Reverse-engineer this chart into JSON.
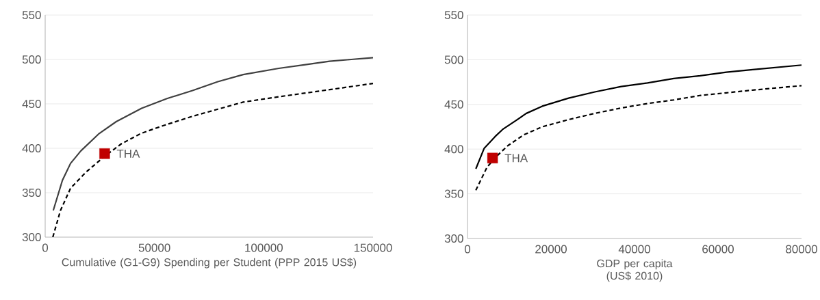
{
  "chart_data": [
    {
      "type": "line",
      "xlabel": "Cumulative  (G1-G9) Spending per Student (PPP 2015 US$)",
      "xlim": [
        0,
        150000
      ],
      "ylim": [
        300,
        550
      ],
      "xticks": [
        0,
        50000,
        100000,
        150000
      ],
      "yticks": [
        300,
        350,
        400,
        450,
        500,
        550
      ],
      "grid": "y",
      "series": [
        {
          "color": "#404040",
          "line_style": "solid",
          "x": [
            3700,
            7900,
            11600,
            16300,
            24400,
            32500,
            44100,
            55700,
            67400,
            79000,
            90600,
            106900,
            118500,
            130100,
            140000,
            150000
          ],
          "values": [
            330,
            364,
            383,
            397,
            416,
            430,
            445,
            456,
            465,
            475,
            483,
            490,
            494,
            498,
            500,
            502
          ]
        },
        {
          "color": "#000000",
          "line_style": "dashed",
          "x": [
            3500,
            7000,
            11600,
            18600,
            26700,
            34800,
            44100,
            54600,
            67400,
            79000,
            90600,
            106900,
            118500,
            130100,
            150000
          ],
          "values": [
            300,
            330,
            355,
            373,
            390,
            405,
            417,
            426,
            436,
            444,
            452,
            458,
            462,
            466,
            473
          ]
        },
        {
          "type": "scatter",
          "name": "THA",
          "color": "#c00000",
          "marker": "square",
          "x": [
            27200
          ],
          "values": [
            394
          ]
        }
      ]
    },
    {
      "type": "line",
      "xlabel": "GDP per capita (US$ 2010)",
      "xlim": [
        0,
        80000
      ],
      "ylim": [
        300,
        550
      ],
      "xticks": [
        0,
        20000,
        40000,
        60000,
        80000
      ],
      "yticks": [
        300,
        350,
        400,
        450,
        500,
        550
      ],
      "grid": "y",
      "series": [
        {
          "color": "#000000",
          "line_style": "solid",
          "x": [
            2000,
            4000,
            6600,
            8400,
            11600,
            14100,
            17900,
            24200,
            30500,
            36800,
            43100,
            49400,
            55700,
            62000,
            68300,
            80000
          ],
          "values": [
            378,
            401,
            414,
            422,
            432,
            440,
            448,
            457,
            464,
            470,
            474,
            479,
            482,
            486,
            489,
            494
          ]
        },
        {
          "color": "#000000",
          "line_style": "dashed",
          "x": [
            2000,
            4700,
            7200,
            9700,
            13500,
            17900,
            24200,
            30500,
            36800,
            43100,
            49400,
            55700,
            62000,
            68300,
            80000
          ],
          "values": [
            354,
            380,
            393,
            404,
            416,
            425,
            433,
            440,
            446,
            451,
            455,
            460,
            463,
            466,
            471
          ]
        },
        {
          "type": "scatter",
          "name": "THA",
          "color": "#c00000",
          "marker": "square",
          "x": [
            6000
          ],
          "values": [
            390
          ]
        }
      ]
    }
  ]
}
